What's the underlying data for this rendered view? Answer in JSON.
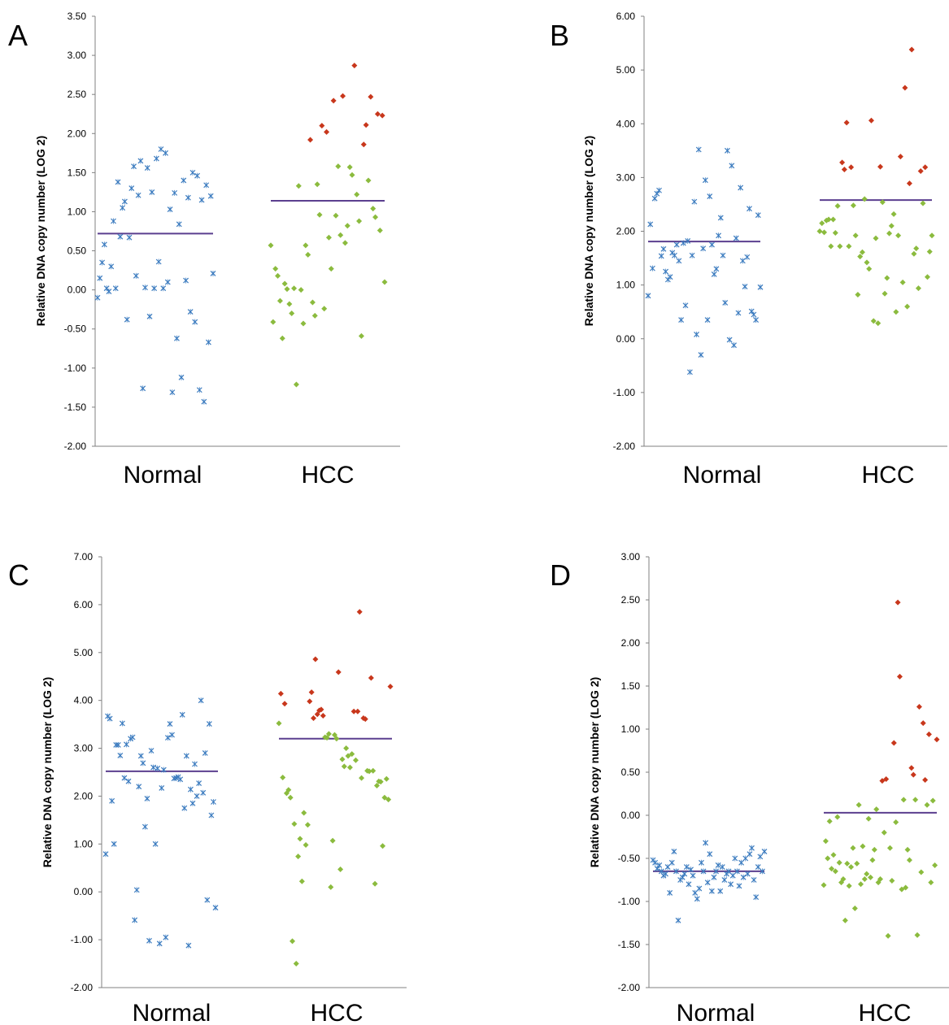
{
  "chart_data": [
    {
      "type": "scatter",
      "panel_letter": "A",
      "ylabel": "Relative DNA copy number (LOG 2)",
      "categories": [
        "Normal",
        "HCC"
      ],
      "ylim": [
        -2,
        3.5
      ],
      "yticks": [
        "3.50",
        "3.00",
        "2.50",
        "2.00",
        "1.50",
        "1.00",
        "0.50",
        "0.00",
        "-0.50",
        "-1.00",
        "-1.50",
        "-2.00"
      ],
      "means": {
        "Normal": 0.72,
        "HCC": 1.14
      },
      "colors": {
        "normal": "#3b7bbf",
        "hcc_low": "#8bbb3e",
        "hcc_high": "#c8371c",
        "mean": "#5b3f8f"
      },
      "series": [
        {
          "group": "Normal",
          "values": [
            -0.1,
            0.15,
            0.35,
            0.58,
            0.02,
            -0.02,
            0.3,
            0.88,
            0.02,
            1.38,
            0.68,
            1.05,
            1.13,
            -0.38,
            0.67,
            1.3,
            1.58,
            0.18,
            1.21,
            1.65,
            -1.26,
            0.03,
            1.56,
            -0.34,
            1.25,
            0.02,
            1.68,
            0.36,
            1.8,
            0.02,
            1.75,
            0.1,
            1.03,
            -1.31,
            1.24,
            -0.62,
            0.84,
            -1.12,
            1.4,
            0.12,
            1.18,
            -0.28,
            1.5,
            -0.41,
            1.46,
            -1.28,
            1.15,
            -1.43,
            1.34,
            -0.67,
            1.2,
            0.21
          ]
        },
        {
          "group": "HCC",
          "values": [
            0.57,
            -0.41,
            0.27,
            0.18,
            -0.14,
            -0.62,
            0.08,
            0.01,
            -0.18,
            -0.3,
            0.02,
            -1.21,
            1.33,
            0.0,
            -0.43,
            0.57,
            0.45,
            1.92,
            -0.16,
            -0.33,
            1.35,
            0.96,
            2.1,
            -0.24,
            2.02,
            0.67,
            0.27,
            2.42,
            0.95,
            1.58,
            0.7,
            2.48,
            0.6,
            0.82,
            1.57,
            1.47,
            2.87,
            1.22,
            0.88,
            -0.59,
            1.86,
            2.11,
            1.4,
            2.47,
            1.04,
            0.93,
            2.25,
            0.76,
            2.23,
            0.1
          ]
        }
      ]
    },
    {
      "type": "scatter",
      "panel_letter": "B",
      "ylabel": "Relative DNA copy number (LOG 2)",
      "categories": [
        "Normal",
        "HCC"
      ],
      "ylim": [
        -2,
        6
      ],
      "yticks": [
        "6.00",
        "5.00",
        "4.00",
        "3.00",
        "2.00",
        "1.00",
        "0.00",
        "-1.00",
        "-2.00"
      ],
      "means": {
        "Normal": 1.81,
        "HCC": 2.58
      },
      "colors": {
        "normal": "#3b7bbf",
        "hcc_low": "#8bbb3e",
        "hcc_high": "#c8371c",
        "mean": "#5b3f8f"
      },
      "series": [
        {
          "group": "Normal",
          "values": [
            0.8,
            2.13,
            1.31,
            2.61,
            2.7,
            2.76,
            1.54,
            1.67,
            1.25,
            1.1,
            1.15,
            1.6,
            1.55,
            1.75,
            1.45,
            0.35,
            1.78,
            0.62,
            1.82,
            -0.62,
            1.55,
            2.55,
            0.08,
            3.52,
            -0.3,
            1.68,
            2.95,
            0.35,
            2.65,
            1.75,
            1.2,
            1.3,
            1.92,
            2.25,
            1.55,
            0.67,
            3.5,
            -0.02,
            3.22,
            -0.12,
            1.87,
            0.48,
            2.81,
            1.45,
            0.97,
            1.52,
            2.42,
            0.51,
            0.45,
            0.35,
            2.3,
            0.96
          ]
        },
        {
          "group": "HCC",
          "values": [
            2.0,
            2.15,
            1.98,
            2.2,
            2.22,
            1.72,
            2.22,
            1.97,
            2.47,
            1.72,
            3.28,
            3.15,
            4.02,
            1.72,
            3.19,
            2.48,
            1.92,
            0.82,
            1.53,
            1.61,
            2.6,
            1.42,
            1.3,
            4.06,
            0.33,
            1.87,
            0.29,
            3.2,
            2.54,
            0.84,
            1.13,
            1.96,
            2.1,
            2.32,
            0.5,
            1.92,
            3.39,
            1.05,
            4.67,
            0.6,
            2.89,
            5.38,
            1.58,
            1.68,
            0.94,
            3.12,
            2.52,
            3.19,
            1.15,
            1.62,
            1.92
          ]
        }
      ]
    },
    {
      "type": "scatter",
      "panel_letter": "C",
      "ylabel": "Relative DNA copy number (LOG 2)",
      "categories": [
        "Normal",
        "HCC"
      ],
      "ylim": [
        -2,
        7
      ],
      "yticks": [
        "7.00",
        "6.00",
        "5.00",
        "4.00",
        "3.00",
        "2.00",
        "1.00",
        "0.00",
        "-1.00",
        "-2.00"
      ],
      "means": {
        "Normal": 2.52,
        "HCC": 3.2
      },
      "colors": {
        "normal": "#3b7bbf",
        "hcc_low": "#8bbb3e",
        "hcc_high": "#c8371c",
        "mean": "#5b3f8f"
      },
      "series": [
        {
          "group": "Normal",
          "values": [
            0.79,
            3.67,
            3.62,
            1.9,
            1.0,
            3.07,
            3.07,
            2.85,
            3.52,
            2.38,
            3.08,
            2.31,
            3.2,
            3.23,
            -0.59,
            0.04,
            2.2,
            2.84,
            2.69,
            1.36,
            1.95,
            -1.02,
            2.95,
            2.6,
            1.0,
            2.58,
            -1.08,
            2.17,
            2.55,
            -0.95,
            3.22,
            3.51,
            3.28,
            2.37,
            2.38,
            2.4,
            2.35,
            3.7,
            1.75,
            2.84,
            -1.12,
            2.14,
            1.85,
            2.67,
            2.0,
            2.27,
            4.0,
            2.07,
            2.9,
            -0.17,
            3.51,
            1.6,
            1.88,
            -0.33
          ]
        },
        {
          "group": "HCC",
          "values": [
            3.52,
            4.14,
            2.39,
            3.93,
            2.06,
            2.13,
            1.97,
            -1.03,
            1.42,
            -1.5,
            0.74,
            1.11,
            0.22,
            1.65,
            0.98,
            1.4,
            3.98,
            4.17,
            3.63,
            4.86,
            3.71,
            3.79,
            3.81,
            3.68,
            3.23,
            3.22,
            3.3,
            0.1,
            1.07,
            3.28,
            3.2,
            4.59,
            0.47,
            2.77,
            2.62,
            3.0,
            2.84,
            2.6,
            2.88,
            3.77,
            2.75,
            3.77,
            5.85,
            2.38,
            3.63,
            3.61,
            2.53,
            2.52,
            4.47,
            2.53,
            0.17,
            2.22,
            2.31,
            2.3,
            0.96,
            1.97,
            2.36,
            1.93,
            4.29
          ]
        }
      ]
    },
    {
      "type": "scatter",
      "panel_letter": "D",
      "ylabel": "Relative DNA copy number (LOG 2)",
      "categories": [
        "Normal",
        "HCC"
      ],
      "ylim": [
        -2,
        3
      ],
      "yticks": [
        "3.00",
        "2.50",
        "2.00",
        "1.50",
        "1.00",
        "0.50",
        "0.00",
        "-0.50",
        "-1.00",
        "-1.50",
        "-2.00"
      ],
      "means": {
        "Normal": -0.65,
        "HCC": 0.03
      },
      "colors": {
        "normal": "#3b7bbf",
        "hcc_low": "#8bbb3e",
        "hcc_high": "#c8371c",
        "mean": "#5b3f8f"
      },
      "series": [
        {
          "group": "Normal",
          "values": [
            -0.52,
            -0.55,
            -0.62,
            -0.58,
            -0.65,
            -0.7,
            -0.68,
            -0.6,
            -0.9,
            -0.55,
            -0.42,
            -0.65,
            -1.22,
            -0.75,
            -0.72,
            -0.68,
            -0.6,
            -0.8,
            -0.63,
            -0.7,
            -0.9,
            -0.97,
            -0.85,
            -0.55,
            -0.65,
            -0.32,
            -0.78,
            -0.45,
            -0.88,
            -0.72,
            -0.65,
            -0.58,
            -0.88,
            -0.6,
            -0.75,
            -0.68,
            -0.65,
            -0.8,
            -0.7,
            -0.5,
            -0.65,
            -0.82,
            -0.55,
            -0.72,
            -0.5,
            -0.68,
            -0.45,
            -0.38,
            -0.75,
            -0.95,
            -0.6,
            -0.48,
            -0.65,
            -0.42
          ]
        },
        {
          "group": "HCC",
          "values": [
            -0.81,
            -0.3,
            -0.5,
            -0.07,
            -0.62,
            -0.46,
            -0.65,
            -0.02,
            -0.55,
            -0.78,
            -0.74,
            -1.22,
            -0.56,
            -0.82,
            -0.6,
            -0.38,
            -1.08,
            -0.56,
            0.12,
            -0.8,
            -0.36,
            -0.74,
            -0.68,
            -0.04,
            -0.72,
            -0.52,
            -0.4,
            0.07,
            -0.78,
            -0.74,
            0.4,
            -0.2,
            0.42,
            -1.4,
            -0.38,
            -0.76,
            0.84,
            -0.08,
            2.47,
            1.61,
            -0.86,
            0.18,
            -0.84,
            -0.4,
            -0.52,
            0.55,
            0.47,
            0.18,
            -1.39,
            1.26,
            -0.66,
            1.07,
            0.41,
            0.12,
            0.94,
            -0.78,
            0.17,
            -0.58,
            0.88
          ]
        }
      ]
    }
  ]
}
